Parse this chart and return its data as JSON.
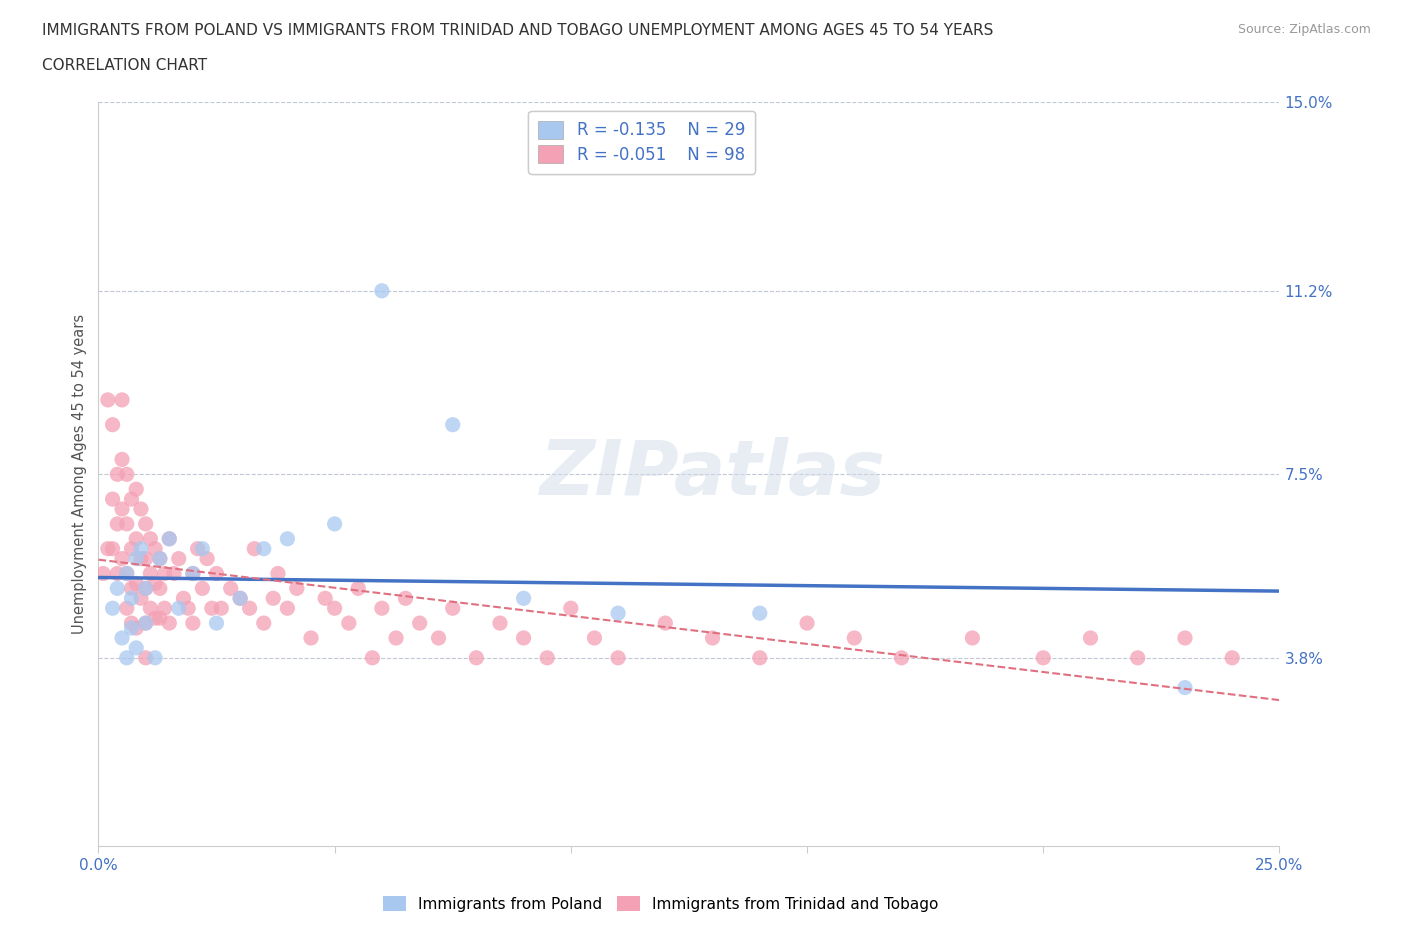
{
  "title_line1": "IMMIGRANTS FROM POLAND VS IMMIGRANTS FROM TRINIDAD AND TOBAGO UNEMPLOYMENT AMONG AGES 45 TO 54 YEARS",
  "title_line2": "CORRELATION CHART",
  "source": "Source: ZipAtlas.com",
  "ylabel": "Unemployment Among Ages 45 to 54 years",
  "xlim": [
    0,
    0.25
  ],
  "ylim": [
    0,
    0.15
  ],
  "ytick_positions": [
    0.038,
    0.075,
    0.112,
    0.15
  ],
  "ytick_labels": [
    "3.8%",
    "7.5%",
    "11.2%",
    "15.0%"
  ],
  "R_poland": -0.135,
  "N_poland": 29,
  "R_trinidad": -0.051,
  "N_trinidad": 98,
  "color_poland": "#a8c8f0",
  "color_trinidad": "#f4a0b5",
  "color_text": "#4472c4",
  "trendline_poland_color": "#4472c4",
  "trendline_trinidad_color": "#e07080",
  "watermark": "ZIPatlas",
  "poland_x": [
    0.003,
    0.004,
    0.005,
    0.006,
    0.006,
    0.007,
    0.007,
    0.008,
    0.008,
    0.009,
    0.01,
    0.01,
    0.012,
    0.013,
    0.015,
    0.017,
    0.02,
    0.022,
    0.025,
    0.03,
    0.035,
    0.04,
    0.05,
    0.06,
    0.075,
    0.09,
    0.11,
    0.14,
    0.23
  ],
  "poland_y": [
    0.048,
    0.052,
    0.042,
    0.038,
    0.055,
    0.044,
    0.05,
    0.058,
    0.04,
    0.06,
    0.045,
    0.052,
    0.038,
    0.058,
    0.062,
    0.048,
    0.055,
    0.06,
    0.045,
    0.05,
    0.06,
    0.062,
    0.065,
    0.112,
    0.085,
    0.05,
    0.047,
    0.047,
    0.032
  ],
  "trinidad_x": [
    0.001,
    0.002,
    0.002,
    0.003,
    0.003,
    0.003,
    0.004,
    0.004,
    0.004,
    0.005,
    0.005,
    0.005,
    0.005,
    0.006,
    0.006,
    0.006,
    0.006,
    0.007,
    0.007,
    0.007,
    0.007,
    0.008,
    0.008,
    0.008,
    0.008,
    0.009,
    0.009,
    0.009,
    0.01,
    0.01,
    0.01,
    0.01,
    0.01,
    0.011,
    0.011,
    0.011,
    0.012,
    0.012,
    0.012,
    0.013,
    0.013,
    0.013,
    0.014,
    0.014,
    0.015,
    0.015,
    0.016,
    0.017,
    0.018,
    0.019,
    0.02,
    0.02,
    0.021,
    0.022,
    0.023,
    0.024,
    0.025,
    0.026,
    0.028,
    0.03,
    0.032,
    0.033,
    0.035,
    0.037,
    0.038,
    0.04,
    0.042,
    0.045,
    0.048,
    0.05,
    0.053,
    0.055,
    0.058,
    0.06,
    0.063,
    0.065,
    0.068,
    0.072,
    0.075,
    0.08,
    0.085,
    0.09,
    0.095,
    0.1,
    0.105,
    0.11,
    0.12,
    0.13,
    0.14,
    0.15,
    0.16,
    0.17,
    0.185,
    0.2,
    0.21,
    0.22,
    0.23,
    0.24
  ],
  "trinidad_y": [
    0.055,
    0.09,
    0.06,
    0.085,
    0.07,
    0.06,
    0.075,
    0.065,
    0.055,
    0.09,
    0.078,
    0.068,
    0.058,
    0.075,
    0.065,
    0.055,
    0.048,
    0.07,
    0.06,
    0.052,
    0.045,
    0.072,
    0.062,
    0.053,
    0.044,
    0.068,
    0.058,
    0.05,
    0.065,
    0.058,
    0.052,
    0.045,
    0.038,
    0.062,
    0.055,
    0.048,
    0.06,
    0.053,
    0.046,
    0.058,
    0.052,
    0.046,
    0.055,
    0.048,
    0.062,
    0.045,
    0.055,
    0.058,
    0.05,
    0.048,
    0.055,
    0.045,
    0.06,
    0.052,
    0.058,
    0.048,
    0.055,
    0.048,
    0.052,
    0.05,
    0.048,
    0.06,
    0.045,
    0.05,
    0.055,
    0.048,
    0.052,
    0.042,
    0.05,
    0.048,
    0.045,
    0.052,
    0.038,
    0.048,
    0.042,
    0.05,
    0.045,
    0.042,
    0.048,
    0.038,
    0.045,
    0.042,
    0.038,
    0.048,
    0.042,
    0.038,
    0.045,
    0.042,
    0.038,
    0.045,
    0.042,
    0.038,
    0.042,
    0.038,
    0.042,
    0.038,
    0.042,
    0.038
  ]
}
